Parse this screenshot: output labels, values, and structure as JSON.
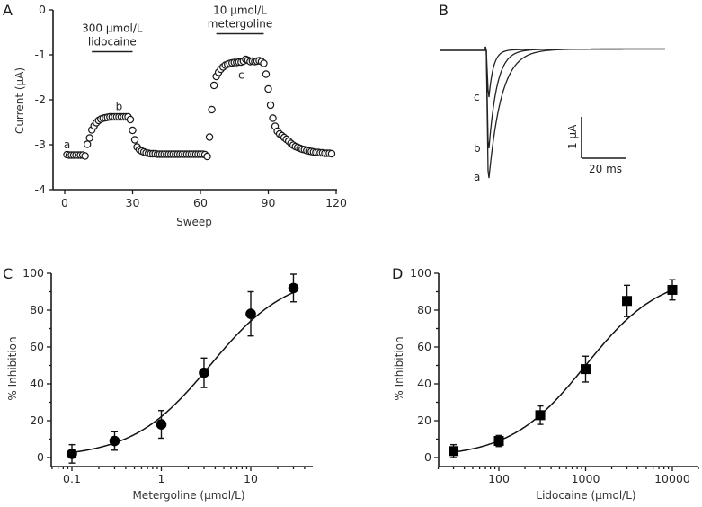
{
  "chart_data": [
    {
      "panel": "A",
      "type": "scatter",
      "title": "",
      "xlabel": "Sweep",
      "ylabel": "Current (μA)",
      "xlim": [
        0,
        120
      ],
      "ylim": [
        -4,
        0
      ],
      "xticks": [
        0,
        30,
        60,
        90,
        120
      ],
      "yticks": [
        0,
        -1,
        -2,
        -3,
        -4
      ],
      "xtick_labels": [
        "0",
        "30",
        "60",
        "90",
        "120"
      ],
      "ytick_labels": [
        "0",
        "-1",
        "-2",
        "-3",
        "-4"
      ],
      "marker": "open-circle",
      "annotations": [
        {
          "text": "a",
          "x": 1,
          "y": -3.0
        },
        {
          "text": "b",
          "x": 24,
          "y": -2.15
        },
        {
          "text": "c",
          "x": 78,
          "y": -1.45
        }
      ],
      "bars": [
        {
          "label_line1": "300 μmol/L",
          "label_line2": "lidocaine",
          "x_start": 12,
          "x_end": 30,
          "y": -0.93
        },
        {
          "label_line1": "10 μmol/L",
          "label_line2": "metergoline",
          "x_start": 67,
          "x_end": 88,
          "y": -0.53
        }
      ],
      "x": [
        1,
        2,
        3,
        4,
        5,
        6,
        7,
        8,
        9,
        10,
        11,
        12,
        13,
        14,
        15,
        16,
        17,
        18,
        19,
        20,
        21,
        22,
        23,
        24,
        25,
        26,
        27,
        28,
        29,
        30,
        31,
        32,
        33,
        34,
        35,
        36,
        37,
        38,
        39,
        40,
        41,
        42,
        43,
        44,
        45,
        46,
        47,
        48,
        49,
        50,
        51,
        52,
        53,
        54,
        55,
        56,
        57,
        58,
        59,
        60,
        61,
        62,
        63,
        64,
        65,
        66,
        67,
        68,
        69,
        70,
        71,
        72,
        73,
        74,
        75,
        76,
        77,
        78,
        79,
        80,
        81,
        82,
        83,
        84,
        85,
        86,
        87,
        88,
        89,
        90,
        91,
        92,
        93,
        94,
        95,
        96,
        97,
        98,
        99,
        100,
        101,
        102,
        103,
        104,
        105,
        106,
        107,
        108,
        109,
        110,
        111,
        112,
        113,
        114,
        115,
        116,
        117,
        118
      ],
      "y": [
        -3.22,
        -3.23,
        -3.23,
        -3.23,
        -3.23,
        -3.23,
        -3.23,
        -3.23,
        -3.25,
        -2.99,
        -2.85,
        -2.67,
        -2.58,
        -2.51,
        -2.46,
        -2.43,
        -2.41,
        -2.4,
        -2.39,
        -2.38,
        -2.38,
        -2.38,
        -2.38,
        -2.38,
        -2.38,
        -2.38,
        -2.38,
        -2.38,
        -2.44,
        -2.68,
        -2.89,
        -3.05,
        -3.11,
        -3.14,
        -3.16,
        -3.18,
        -3.19,
        -3.2,
        -3.2,
        -3.2,
        -3.21,
        -3.21,
        -3.21,
        -3.21,
        -3.21,
        -3.21,
        -3.21,
        -3.21,
        -3.21,
        -3.21,
        -3.21,
        -3.21,
        -3.21,
        -3.21,
        -3.21,
        -3.21,
        -3.21,
        -3.21,
        -3.21,
        -3.21,
        -3.21,
        -3.22,
        -3.26,
        -2.83,
        -2.22,
        -1.68,
        -1.48,
        -1.39,
        -1.32,
        -1.27,
        -1.23,
        -1.21,
        -1.19,
        -1.18,
        -1.17,
        -1.17,
        -1.16,
        -1.16,
        -1.14,
        -1.1,
        -1.12,
        -1.15,
        -1.14,
        -1.15,
        -1.14,
        -1.13,
        -1.15,
        -1.19,
        -1.43,
        -1.76,
        -2.12,
        -2.41,
        -2.59,
        -2.7,
        -2.76,
        -2.8,
        -2.84,
        -2.88,
        -2.92,
        -2.97,
        -3.01,
        -3.04,
        -3.06,
        -3.08,
        -3.1,
        -3.11,
        -3.13,
        -3.14,
        -3.15,
        -3.16,
        -3.17,
        -3.17,
        -3.18,
        -3.18,
        -3.19,
        -3.19,
        -3.19,
        -3.2
      ]
    },
    {
      "panel": "B",
      "type": "line",
      "title": "",
      "description": "Current traces a, b, c",
      "series": [
        {
          "name": "a",
          "peak_uA": -3.2,
          "decay": "slowest"
        },
        {
          "name": "b",
          "peak_uA": -2.4,
          "decay": "medium"
        },
        {
          "name": "c",
          "peak_uA": -1.2,
          "decay": "fastest"
        }
      ],
      "scale_bar": {
        "vertical_label": "1 μA",
        "horizontal_label": "20 ms"
      }
    },
    {
      "panel": "C",
      "type": "scatter",
      "title": "",
      "xlabel": "Metergoline (μmol/L)",
      "ylabel": "% Inhibition",
      "xscale": "log",
      "xlim": [
        0.06,
        40
      ],
      "ylim": [
        0,
        100
      ],
      "xticks": [
        0.1,
        1,
        10
      ],
      "xtick_labels": [
        "0.1",
        "1",
        "10"
      ],
      "yticks": [
        0,
        20,
        40,
        60,
        80,
        100
      ],
      "ytick_labels": [
        "0",
        "20",
        "40",
        "60",
        "80",
        "100"
      ],
      "marker": "filled-circle",
      "x": [
        0.1,
        0.3,
        1,
        3,
        10,
        30
      ],
      "y": [
        2,
        9,
        18,
        46,
        78,
        92
      ],
      "error": [
        5,
        5,
        7.5,
        8,
        12,
        7.5
      ],
      "fit": {
        "type": "hill",
        "bottom": 0,
        "top": 100,
        "ic50": 3.5,
        "hill": 1.0
      }
    },
    {
      "panel": "D",
      "type": "scatter",
      "title": "",
      "xlabel": "Lidocaine (μmol/L)",
      "ylabel": "% Inhibition",
      "xscale": "log",
      "xlim": [
        20,
        20000
      ],
      "ylim": [
        0,
        100
      ],
      "xticks": [
        100,
        1000,
        10000
      ],
      "xtick_labels": [
        "100",
        "1000",
        "10000"
      ],
      "yticks": [
        0,
        20,
        40,
        60,
        80,
        100
      ],
      "ytick_labels": [
        "0",
        "20",
        "40",
        "60",
        "80",
        "100"
      ],
      "marker": "filled-square",
      "x": [
        30,
        100,
        300,
        1000,
        3000,
        10000
      ],
      "y": [
        3.5,
        9,
        23,
        48,
        85,
        91
      ],
      "error": [
        3.5,
        3,
        5,
        7,
        8.5,
        5.5
      ],
      "fit": {
        "type": "hill",
        "bottom": 0,
        "top": 100,
        "ic50": 1000,
        "hill": 1.0
      }
    }
  ],
  "panel_labels": [
    "A",
    "B",
    "C",
    "D"
  ]
}
